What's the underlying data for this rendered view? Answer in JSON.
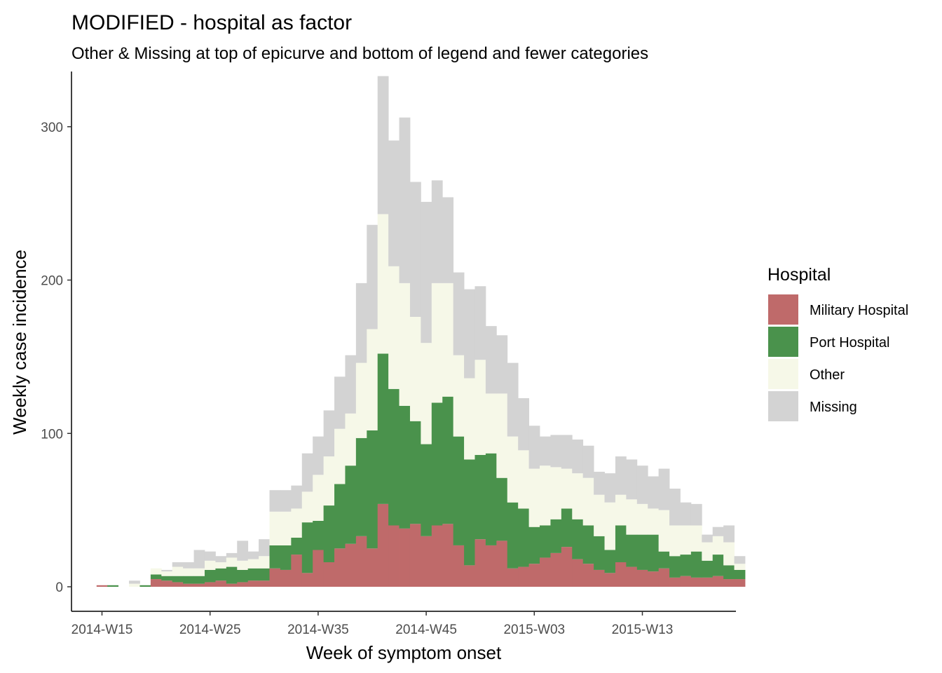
{
  "chart_data": {
    "type": "bar",
    "stacked": true,
    "title": "MODIFIED - hospital as factor",
    "subtitle": "Other & Missing at top of epicurve and bottom of legend and fewer categories",
    "xlabel": "Week of symptom onset",
    "ylabel": "Weekly case incidence",
    "ylim": [
      -16,
      336
    ],
    "yticks": [
      0,
      100,
      200,
      300
    ],
    "grid": false,
    "x_tick_labels": [
      "2014-W15",
      "2014-W25",
      "2014-W35",
      "2014-W45",
      "2015-W03",
      "2015-W13"
    ],
    "x_tick_positions": [
      0,
      10,
      20,
      30,
      40,
      50
    ],
    "legend": {
      "title": "Hospital",
      "position": "right"
    },
    "series": [
      {
        "name": "Military Hospital",
        "color": "#bf6a6a",
        "values": [
          1,
          0,
          0,
          0,
          0,
          5,
          4,
          3,
          2,
          2,
          3,
          4,
          2,
          3,
          4,
          4,
          12,
          11,
          21,
          9,
          24,
          16,
          25,
          28,
          33,
          25,
          54,
          40,
          38,
          41,
          33,
          40,
          41,
          27,
          14,
          31,
          27,
          30,
          12,
          13,
          15,
          19,
          22,
          26,
          18,
          15,
          11,
          9,
          16,
          13,
          11,
          10,
          12,
          6,
          7,
          6,
          6,
          7,
          5,
          5
        ]
      },
      {
        "name": "Port Hospital",
        "color": "#4a924c",
        "values": [
          0,
          1,
          0,
          0,
          1,
          3,
          3,
          4,
          5,
          5,
          8,
          8,
          11,
          8,
          8,
          8,
          15,
          16,
          11,
          33,
          19,
          37,
          42,
          51,
          64,
          77,
          98,
          89,
          80,
          67,
          60,
          80,
          83,
          71,
          69,
          55,
          60,
          41,
          43,
          38,
          24,
          21,
          22,
          25,
          26,
          25,
          22,
          15,
          24,
          21,
          23,
          24,
          11,
          14,
          14,
          17,
          11,
          14,
          9,
          6
        ]
      },
      {
        "name": "Other",
        "color": "#f6f8e8",
        "values": [
          0,
          0,
          0,
          2,
          0,
          4,
          3,
          6,
          5,
          5,
          6,
          4,
          6,
          6,
          6,
          8,
          22,
          22,
          19,
          20,
          30,
          32,
          36,
          34,
          49,
          66,
          91,
          80,
          80,
          68,
          66,
          78,
          74,
          53,
          53,
          62,
          39,
          55,
          43,
          38,
          38,
          39,
          34,
          26,
          30,
          31,
          27,
          31,
          20,
          23,
          20,
          17,
          27,
          20,
          19,
          17,
          12,
          12,
          15,
          4
        ]
      },
      {
        "name": "Missing",
        "color": "#d3d3d3",
        "values": [
          0,
          0,
          0,
          2,
          0,
          0,
          1,
          3,
          4,
          12,
          6,
          4,
          3,
          13,
          5,
          11,
          14,
          14,
          15,
          25,
          25,
          30,
          34,
          38,
          52,
          68,
          90,
          82,
          108,
          88,
          92,
          67,
          56,
          54,
          58,
          48,
          44,
          38,
          48,
          34,
          28,
          19,
          21,
          22,
          22,
          21,
          15,
          19,
          25,
          26,
          25,
          21,
          27,
          24,
          15,
          14,
          5,
          6,
          11,
          5
        ]
      }
    ]
  }
}
